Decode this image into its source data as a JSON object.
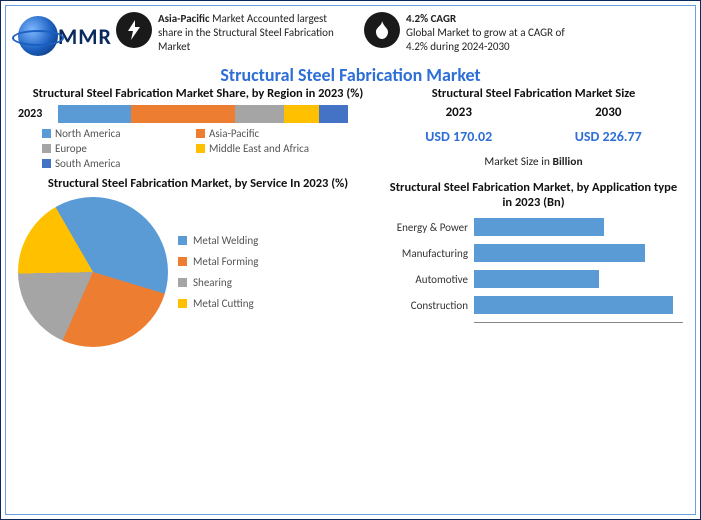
{
  "logo": {
    "text": "MMR"
  },
  "header": {
    "blurb1": {
      "lead": "Asia-Pacific",
      "rest": " Market Accounted largest share in the Structural Steel Fabrication Market"
    },
    "blurb2": {
      "lead": "4.2% CAGR",
      "rest": "Global Market to grow at a CAGR of 4.2% during 2024-2030"
    }
  },
  "main_title": "Structural Steel Fabrication Market",
  "region_chart": {
    "title": "Structural Steel Fabrication Market Share, by Region in 2023 (%)",
    "row_label": "2023",
    "segments": [
      {
        "label": "North America",
        "value": 25,
        "color": "#5a9bd5"
      },
      {
        "label": "Asia-Pacific",
        "value": 36,
        "color": "#ed7d31"
      },
      {
        "label": "Europe",
        "value": 17,
        "color": "#a5a5a5"
      },
      {
        "label": "Middle East and Africa",
        "value": 12,
        "color": "#ffc000"
      },
      {
        "label": "South America",
        "value": 10,
        "color": "#4472c4"
      }
    ]
  },
  "market_size": {
    "title": "Structural Steel Fabrication Market Size",
    "years": [
      "2023",
      "2030"
    ],
    "values": [
      "USD 170.02",
      "USD 226.77"
    ],
    "note_pre": "Market Size in ",
    "note_bold": "Billion"
  },
  "pie_chart": {
    "title": "Structural Steel Fabrication Market, by Service In 2023 (%)",
    "slices": [
      {
        "label": "Metal Welding",
        "value": 38,
        "color": "#5a9bd5"
      },
      {
        "label": "Metal Forming",
        "value": 27,
        "color": "#ed7d31"
      },
      {
        "label": "Shearing",
        "value": 18,
        "color": "#a5a5a5"
      },
      {
        "label": "Metal Cutting",
        "value": 17,
        "color": "#ffc000"
      }
    ]
  },
  "hbar_chart": {
    "title": "Structural Steel Fabrication Market, by Application type in 2023 (Bn)",
    "max": 100,
    "bar_color": "#5a9bd5",
    "items": [
      {
        "label": "Energy & Power",
        "value": 62
      },
      {
        "label": "Manufacturing",
        "value": 82
      },
      {
        "label": "Automotive",
        "value": 60
      },
      {
        "label": "Construction",
        "value": 95
      }
    ]
  }
}
